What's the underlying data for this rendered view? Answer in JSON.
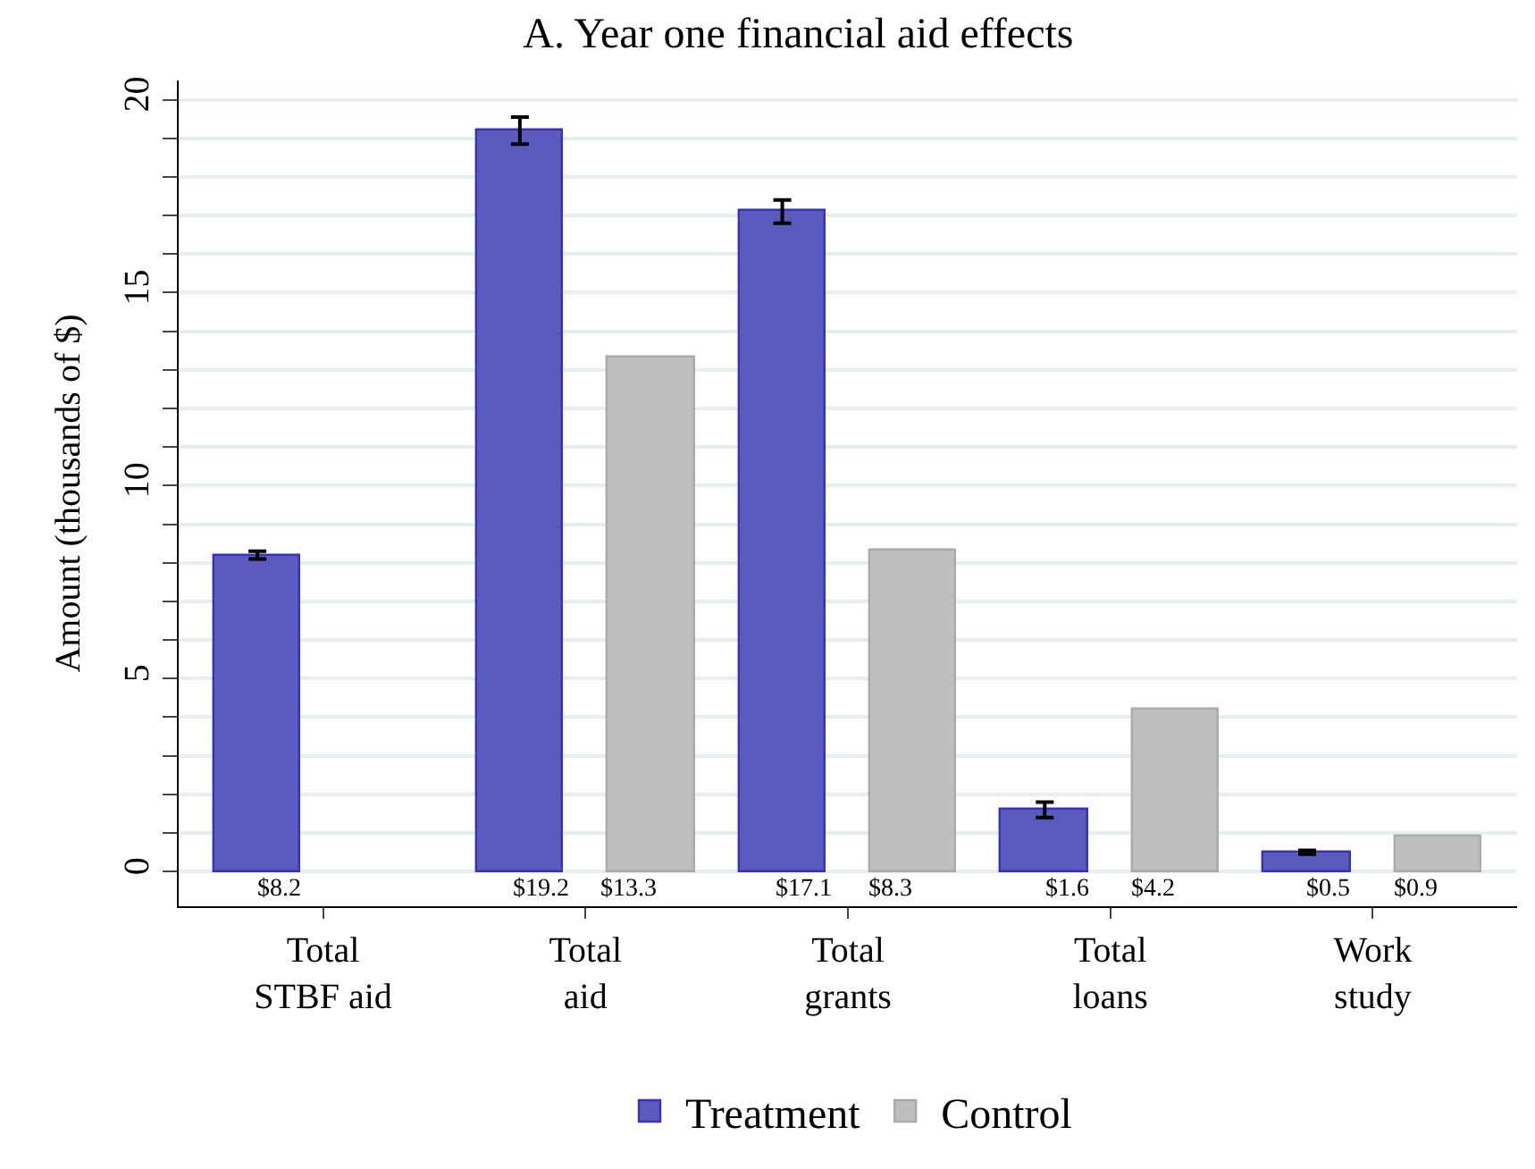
{
  "chart_data": {
    "type": "bar",
    "title": "A. Year one financial aid effects",
    "ylabel": "Amount (thousands of $)",
    "categories": [
      "Total STBF aid",
      "Total aid",
      "Total grants",
      "Total loans",
      "Work study"
    ],
    "series": [
      {
        "name": "Treatment",
        "color": "#5b5bbf",
        "values": [
          8.2,
          19.2,
          17.1,
          1.6,
          0.5
        ],
        "errors": [
          0.1,
          0.35,
          0.3,
          0.2,
          0.05
        ],
        "value_labels": [
          "$8.2",
          "$19.2",
          "$17.1",
          "$1.6",
          "$0.5"
        ]
      },
      {
        "name": "Control",
        "color": "#bebebe",
        "values": [
          null,
          13.3,
          8.3,
          4.2,
          0.9
        ],
        "value_labels": [
          null,
          "$13.3",
          "$8.3",
          "$4.2",
          "$0.9"
        ]
      }
    ],
    "ylim": [
      -0.9,
      20.5
    ],
    "yticks": [
      0,
      {
        "value": 1,
        "label": null
      },
      {
        "value": 2,
        "label": null
      },
      {
        "value": 3,
        "label": null
      },
      {
        "value": 4,
        "label": null
      },
      5,
      {
        "value": 6,
        "label": null
      },
      {
        "value": 7,
        "label": null
      },
      {
        "value": 8,
        "label": null
      },
      {
        "value": 9,
        "label": null
      },
      10,
      {
        "value": 11,
        "label": null
      },
      {
        "value": 12,
        "label": null
      },
      {
        "value": 13,
        "label": null
      },
      {
        "value": 14,
        "label": null
      },
      15,
      {
        "value": 16,
        "label": null
      },
      {
        "value": 17,
        "label": null
      },
      {
        "value": 18,
        "label": null
      },
      {
        "value": 19,
        "label": null
      },
      20
    ],
    "grid": "y",
    "legend": "bottom"
  }
}
